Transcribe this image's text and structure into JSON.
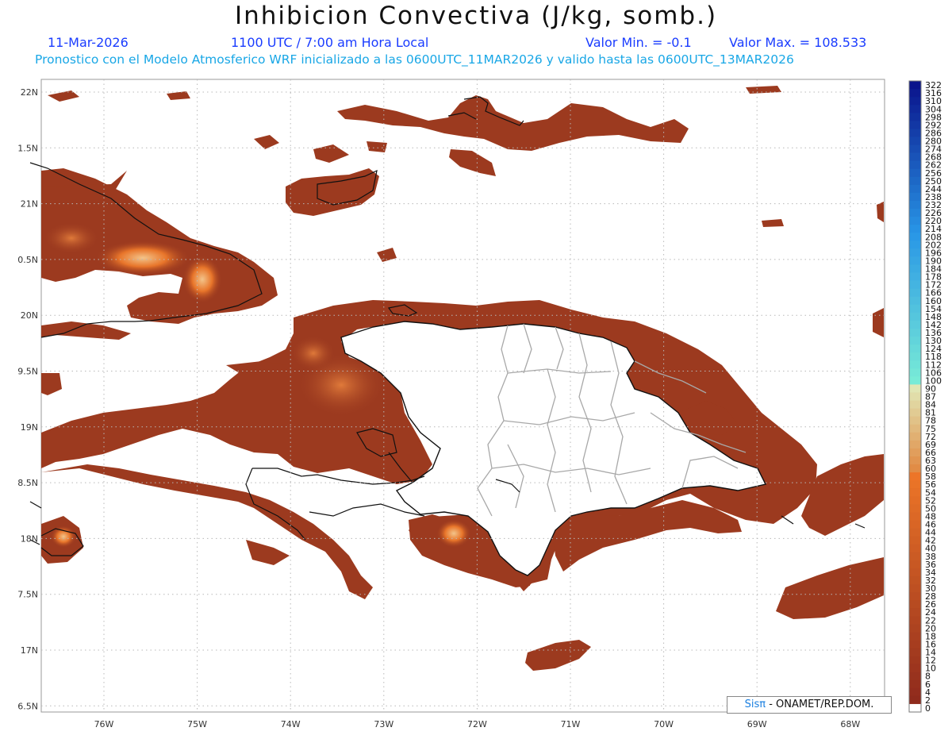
{
  "title": "Inhibicion Convectiva (J/kg, somb.)",
  "header": {
    "date": "11-Mar-2026",
    "time": "1100 UTC / 7:00 am Hora Local",
    "vmin": "Valor Min. = -0.1",
    "vmax": "Valor Max. = 108.533",
    "subtitle": "Pronostico con el Modelo Atmosferico WRF inicializado a las 0600UTC_11MAR2026 y valido hasta las  0600UTC_13MAR2026"
  },
  "map": {
    "lat_labels": [
      "22N",
      "1.5N",
      "21N",
      "0.5N",
      "20N",
      "9.5N",
      "19N",
      "8.5N",
      "18N",
      "7.5N",
      "17N",
      "6.5N"
    ],
    "lon_labels": [
      "76W",
      "75W",
      "74W",
      "73W",
      "72W",
      "71W",
      "70W",
      "69W",
      "68W"
    ],
    "fill_color": "#9c3a1f",
    "colors": {
      "low": "#8b2a1a",
      "mid": "#b84a1f",
      "high": "#e8752a",
      "peak": "#f3c48a",
      "land_white": "#ffffff",
      "coast": "#111111",
      "borders": "#a8a8a8"
    }
  },
  "colorbar": {
    "labels": [
      "322",
      "316",
      "310",
      "304",
      "298",
      "292",
      "286",
      "280",
      "274",
      "268",
      "262",
      "256",
      "250",
      "244",
      "238",
      "232",
      "226",
      "220",
      "214",
      "208",
      "202",
      "196",
      "190",
      "184",
      "178",
      "172",
      "166",
      "160",
      "154",
      "148",
      "142",
      "136",
      "130",
      "124",
      "118",
      "112",
      "106",
      "100",
      "90",
      "87",
      "84",
      "81",
      "78",
      "75",
      "72",
      "69",
      "66",
      "63",
      "60",
      "58",
      "56",
      "54",
      "52",
      "50",
      "48",
      "46",
      "44",
      "42",
      "40",
      "38",
      "36",
      "34",
      "32",
      "30",
      "28",
      "26",
      "24",
      "22",
      "20",
      "18",
      "16",
      "14",
      "12",
      "10",
      "8",
      "6",
      "4",
      "2",
      "0"
    ]
  },
  "credit": {
    "sis": "Sisπ",
    "rest": "- ONAMET/REP.DOM."
  }
}
